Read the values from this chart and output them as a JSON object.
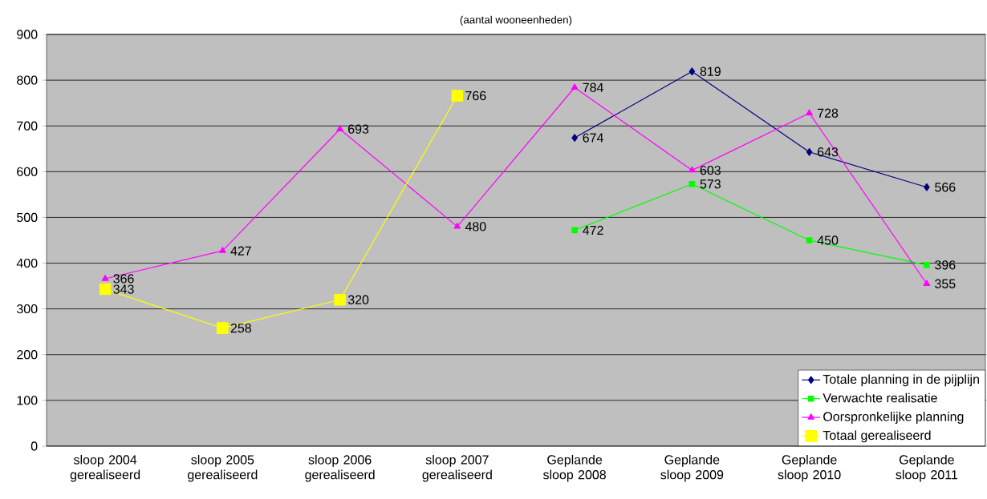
{
  "chart_data": {
    "type": "line",
    "title": "(aantal wooneenheden)",
    "categories": [
      "sloop 2004 gerealiseerd",
      "sloop 2005 gerealiseerd",
      "sloop 2006 gerealiseerd",
      "sloop 2007 gerealiseerd",
      "Geplande sloop 2008",
      "Geplande sloop 2009",
      "Geplande sloop 2010",
      "Geplande sloop 2011"
    ],
    "series": [
      {
        "name": "Totale planning in de pijplijn",
        "color": "#000080",
        "marker": "diamond",
        "values": [
          null,
          null,
          null,
          null,
          674,
          819,
          643,
          566
        ]
      },
      {
        "name": "Verwachte realisatie",
        "color": "#00ff00",
        "marker": "square",
        "values": [
          null,
          null,
          null,
          null,
          472,
          573,
          450,
          396
        ]
      },
      {
        "name": "Oorspronkelijke planning",
        "color": "#ff00ff",
        "marker": "triangle",
        "values": [
          366,
          427,
          693,
          480,
          784,
          603,
          728,
          355
        ]
      },
      {
        "name": "Totaal gerealiseerd",
        "color": "#ffff00",
        "marker": "square",
        "values": [
          343,
          258,
          320,
          766,
          null,
          null,
          null,
          null
        ]
      }
    ],
    "ylim": [
      0,
      900
    ],
    "yticks": [
      0,
      100,
      200,
      300,
      400,
      500,
      600,
      700,
      800,
      900
    ],
    "grid": "y",
    "legend": "bottom right",
    "data_labels": true,
    "line_style": "solid"
  }
}
